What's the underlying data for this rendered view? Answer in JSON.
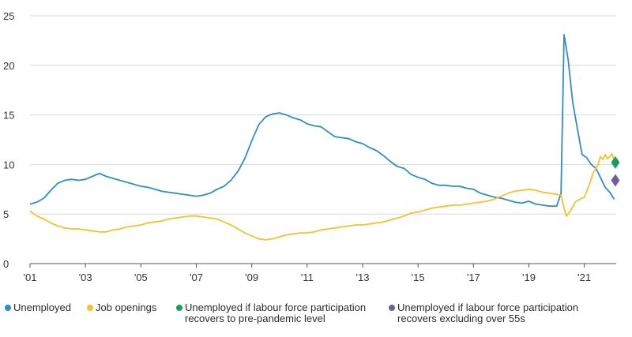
{
  "chart_data": {
    "type": "line",
    "title": "",
    "xlabel": "",
    "ylabel": "",
    "ylim": [
      0,
      25
    ],
    "xlim": [
      2001,
      2022.15
    ],
    "yticks": [
      0,
      5,
      10,
      15,
      20,
      25
    ],
    "ytick_labels": [
      "0",
      "5",
      "10",
      "15",
      "20",
      "25"
    ],
    "xticks": [
      2001,
      2003,
      2005,
      2007,
      2009,
      2011,
      2013,
      2015,
      2017,
      2019,
      2021
    ],
    "xtick_labels": [
      "'01",
      "'03",
      "'05",
      "'07",
      "'09",
      "'11",
      "'13",
      "'15",
      "'17",
      "'19",
      "'21"
    ],
    "grid": "horizontal",
    "series": [
      {
        "name": "Unemployed",
        "color": "#2e8ecb",
        "points": [
          [
            2001.0,
            6.0
          ],
          [
            2001.25,
            6.2
          ],
          [
            2001.5,
            6.6
          ],
          [
            2001.75,
            7.4
          ],
          [
            2002.0,
            8.1
          ],
          [
            2002.25,
            8.4
          ],
          [
            2002.5,
            8.5
          ],
          [
            2002.75,
            8.4
          ],
          [
            2003.0,
            8.5
          ],
          [
            2003.25,
            8.8
          ],
          [
            2003.5,
            9.1
          ],
          [
            2003.75,
            8.8
          ],
          [
            2004.0,
            8.6
          ],
          [
            2004.25,
            8.4
          ],
          [
            2004.5,
            8.2
          ],
          [
            2004.75,
            8.0
          ],
          [
            2005.0,
            7.8
          ],
          [
            2005.25,
            7.7
          ],
          [
            2005.5,
            7.5
          ],
          [
            2005.75,
            7.3
          ],
          [
            2006.0,
            7.2
          ],
          [
            2006.25,
            7.1
          ],
          [
            2006.5,
            7.0
          ],
          [
            2006.75,
            6.9
          ],
          [
            2007.0,
            6.8
          ],
          [
            2007.25,
            6.9
          ],
          [
            2007.5,
            7.1
          ],
          [
            2007.75,
            7.5
          ],
          [
            2008.0,
            7.8
          ],
          [
            2008.25,
            8.4
          ],
          [
            2008.5,
            9.3
          ],
          [
            2008.75,
            10.6
          ],
          [
            2009.0,
            12.4
          ],
          [
            2009.25,
            14.0
          ],
          [
            2009.5,
            14.8
          ],
          [
            2009.75,
            15.1
          ],
          [
            2010.0,
            15.2
          ],
          [
            2010.25,
            15.0
          ],
          [
            2010.5,
            14.7
          ],
          [
            2010.75,
            14.5
          ],
          [
            2011.0,
            14.1
          ],
          [
            2011.25,
            13.9
          ],
          [
            2011.5,
            13.8
          ],
          [
            2011.75,
            13.3
          ],
          [
            2012.0,
            12.8
          ],
          [
            2012.25,
            12.7
          ],
          [
            2012.5,
            12.6
          ],
          [
            2012.75,
            12.3
          ],
          [
            2013.0,
            12.1
          ],
          [
            2013.25,
            11.7
          ],
          [
            2013.5,
            11.4
          ],
          [
            2013.75,
            10.9
          ],
          [
            2014.0,
            10.3
          ],
          [
            2014.25,
            9.8
          ],
          [
            2014.5,
            9.6
          ],
          [
            2014.75,
            9.0
          ],
          [
            2015.0,
            8.7
          ],
          [
            2015.25,
            8.5
          ],
          [
            2015.5,
            8.1
          ],
          [
            2015.75,
            7.9
          ],
          [
            2016.0,
            7.9
          ],
          [
            2016.25,
            7.8
          ],
          [
            2016.5,
            7.8
          ],
          [
            2016.75,
            7.6
          ],
          [
            2017.0,
            7.5
          ],
          [
            2017.25,
            7.1
          ],
          [
            2017.5,
            6.9
          ],
          [
            2017.75,
            6.7
          ],
          [
            2018.0,
            6.6
          ],
          [
            2018.25,
            6.4
          ],
          [
            2018.5,
            6.2
          ],
          [
            2018.75,
            6.1
          ],
          [
            2019.0,
            6.3
          ],
          [
            2019.25,
            6.0
          ],
          [
            2019.5,
            5.9
          ],
          [
            2019.75,
            5.8
          ],
          [
            2020.0,
            5.8
          ],
          [
            2020.16,
            7.1
          ],
          [
            2020.27,
            23.1
          ],
          [
            2020.42,
            20.5
          ],
          [
            2020.58,
            16.3
          ],
          [
            2020.75,
            13.6
          ],
          [
            2020.92,
            11.0
          ],
          [
            2021.08,
            10.7
          ],
          [
            2021.25,
            10.0
          ],
          [
            2021.42,
            9.6
          ],
          [
            2021.58,
            8.7
          ],
          [
            2021.75,
            7.7
          ],
          [
            2021.92,
            7.2
          ],
          [
            2022.08,
            6.5
          ]
        ]
      },
      {
        "name": "Job openings",
        "color": "#f5c12e",
        "points": [
          [
            2001.0,
            5.3
          ],
          [
            2001.25,
            4.8
          ],
          [
            2001.5,
            4.5
          ],
          [
            2001.75,
            4.1
          ],
          [
            2002.0,
            3.8
          ],
          [
            2002.25,
            3.6
          ],
          [
            2002.5,
            3.5
          ],
          [
            2002.75,
            3.5
          ],
          [
            2003.0,
            3.4
          ],
          [
            2003.25,
            3.3
          ],
          [
            2003.5,
            3.2
          ],
          [
            2003.75,
            3.2
          ],
          [
            2004.0,
            3.4
          ],
          [
            2004.25,
            3.5
          ],
          [
            2004.5,
            3.7
          ],
          [
            2004.75,
            3.8
          ],
          [
            2005.0,
            3.9
          ],
          [
            2005.25,
            4.1
          ],
          [
            2005.5,
            4.2
          ],
          [
            2005.75,
            4.3
          ],
          [
            2006.0,
            4.5
          ],
          [
            2006.25,
            4.6
          ],
          [
            2006.5,
            4.7
          ],
          [
            2006.75,
            4.8
          ],
          [
            2007.0,
            4.8
          ],
          [
            2007.25,
            4.7
          ],
          [
            2007.5,
            4.6
          ],
          [
            2007.75,
            4.5
          ],
          [
            2008.0,
            4.2
          ],
          [
            2008.25,
            3.9
          ],
          [
            2008.5,
            3.5
          ],
          [
            2008.75,
            3.1
          ],
          [
            2009.0,
            2.8
          ],
          [
            2009.25,
            2.5
          ],
          [
            2009.5,
            2.4
          ],
          [
            2009.75,
            2.5
          ],
          [
            2010.0,
            2.7
          ],
          [
            2010.25,
            2.9
          ],
          [
            2010.5,
            3.0
          ],
          [
            2010.75,
            3.1
          ],
          [
            2011.0,
            3.1
          ],
          [
            2011.25,
            3.2
          ],
          [
            2011.5,
            3.4
          ],
          [
            2011.75,
            3.5
          ],
          [
            2012.0,
            3.6
          ],
          [
            2012.25,
            3.7
          ],
          [
            2012.5,
            3.8
          ],
          [
            2012.75,
            3.9
          ],
          [
            2013.0,
            3.9
          ],
          [
            2013.25,
            4.0
          ],
          [
            2013.5,
            4.1
          ],
          [
            2013.75,
            4.2
          ],
          [
            2014.0,
            4.4
          ],
          [
            2014.25,
            4.6
          ],
          [
            2014.5,
            4.8
          ],
          [
            2014.75,
            5.1
          ],
          [
            2015.0,
            5.2
          ],
          [
            2015.25,
            5.4
          ],
          [
            2015.5,
            5.6
          ],
          [
            2015.75,
            5.7
          ],
          [
            2016.0,
            5.8
          ],
          [
            2016.25,
            5.9
          ],
          [
            2016.5,
            5.9
          ],
          [
            2016.75,
            6.0
          ],
          [
            2017.0,
            6.1
          ],
          [
            2017.25,
            6.2
          ],
          [
            2017.5,
            6.3
          ],
          [
            2017.75,
            6.5
          ],
          [
            2018.0,
            6.8
          ],
          [
            2018.25,
            7.1
          ],
          [
            2018.5,
            7.3
          ],
          [
            2018.75,
            7.4
          ],
          [
            2019.0,
            7.5
          ],
          [
            2019.25,
            7.4
          ],
          [
            2019.5,
            7.2
          ],
          [
            2019.75,
            7.1
          ],
          [
            2020.0,
            7.0
          ],
          [
            2020.16,
            6.9
          ],
          [
            2020.27,
            5.6
          ],
          [
            2020.35,
            4.8
          ],
          [
            2020.5,
            5.3
          ],
          [
            2020.67,
            6.2
          ],
          [
            2020.83,
            6.5
          ],
          [
            2021.0,
            6.7
          ],
          [
            2021.17,
            7.9
          ],
          [
            2021.33,
            9.2
          ],
          [
            2021.5,
            10.0
          ],
          [
            2021.58,
            10.8
          ],
          [
            2021.67,
            10.5
          ],
          [
            2021.75,
            11.0
          ],
          [
            2021.83,
            10.6
          ],
          [
            2021.92,
            10.8
          ],
          [
            2022.0,
            11.1
          ],
          [
            2022.08,
            10.4
          ]
        ]
      }
    ],
    "markers": [
      {
        "name": "Unemployed if labour force participation recovers to pre-pandemic level",
        "x": 2022.12,
        "y": 10.2,
        "shape": "diamond",
        "color": "#1a9b5f"
      },
      {
        "name": "Unemployed if labour force participation recovers excluding over 55s",
        "x": 2022.12,
        "y": 8.4,
        "shape": "diamond",
        "color": "#6f5ea6"
      }
    ]
  },
  "legend": [
    {
      "label": "Unemployed",
      "color": "#2e8ecb"
    },
    {
      "label": "Job openings",
      "color": "#f5c12e"
    },
    {
      "label": "Unemployed if labour force participation\nrecovers to pre-pandemic level",
      "color": "#1a9b5f"
    },
    {
      "label": "Unemployed if labour force participation\nrecovers excluding over 55s",
      "color": "#6f5ea6"
    }
  ]
}
